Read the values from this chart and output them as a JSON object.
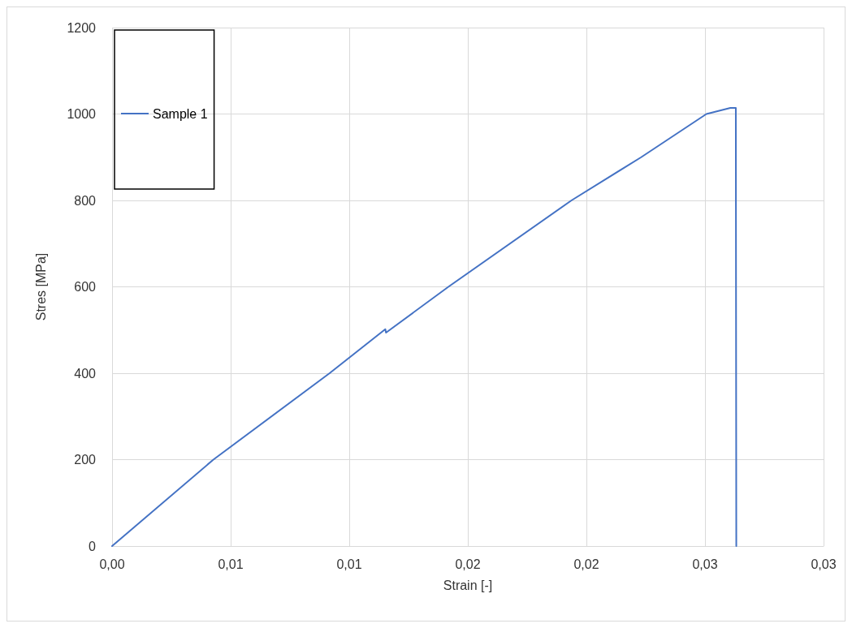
{
  "chart_data": {
    "type": "line",
    "xlabel": "Strain [-]",
    "ylabel": "Stres [MPa]",
    "xlim": [
      0,
      0.03
    ],
    "xticks": [
      {
        "value": 0,
        "label": "0,00"
      },
      {
        "value": 0.005,
        "label": "0,01"
      },
      {
        "value": 0.01,
        "label": "0,01"
      },
      {
        "value": 0.015,
        "label": "0,02"
      },
      {
        "value": 0.02,
        "label": "0,02"
      },
      {
        "value": 0.025,
        "label": "0,03"
      },
      {
        "value": 0.03,
        "label": "0,03"
      }
    ],
    "ylim": [
      0,
      1200
    ],
    "yticks": [
      0,
      200,
      400,
      600,
      800,
      1000,
      1200
    ],
    "series": [
      {
        "name": "Sample 1",
        "color": "#4472c4",
        "x": [
          0,
          0.00427,
          0.00917,
          0.01152,
          0.01155,
          0.01418,
          0.01937,
          0.02231,
          0.02506,
          0.02607,
          0.0263,
          0.02632
        ],
        "values": [
          0,
          200,
          400,
          502,
          494,
          600,
          800,
          900,
          1000,
          1014,
          1014,
          0
        ]
      }
    ],
    "grid": true,
    "legend": "top left",
    "marker": "none",
    "line_style": "solid"
  }
}
